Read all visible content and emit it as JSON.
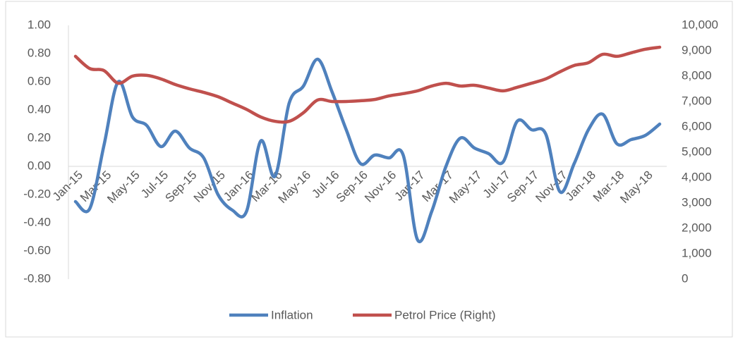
{
  "chart_data": {
    "type": "line",
    "categories": [
      "Jan-15",
      null,
      "Mar-15",
      null,
      "May-15",
      null,
      "Jul-15",
      null,
      "Sep-15",
      null,
      "Nov-15",
      null,
      "Jan-16",
      null,
      "Mar-16",
      null,
      "May-16",
      null,
      "Jul-16",
      null,
      "Sep-16",
      null,
      "Nov-16",
      null,
      "Jan-17",
      null,
      "Mar-17",
      null,
      "May-17",
      null,
      "Jul-17",
      null,
      "Sep-17",
      null,
      "Nov-17",
      null,
      "Jan-18",
      null,
      "Mar-18",
      null,
      "May-18",
      null
    ],
    "series": [
      {
        "name": "Inflation",
        "color": "#4f81bd",
        "values": [
          -0.25,
          -0.3,
          0.15,
          0.6,
          0.35,
          0.29,
          0.14,
          0.25,
          0.13,
          0.06,
          -0.2,
          -0.31,
          -0.32,
          0.18,
          -0.07,
          0.45,
          0.57,
          0.76,
          0.53,
          0.26,
          0.02,
          0.08,
          0.06,
          0.08,
          -0.52,
          -0.32,
          0.0,
          0.2,
          0.13,
          0.09,
          0.03,
          0.32,
          0.26,
          0.23,
          -0.18,
          0.02,
          0.26,
          0.37,
          0.16,
          0.19,
          0.22,
          0.3
        ]
      },
      {
        "name": "Petrol Price (Right)",
        "color": "#c0504d",
        "axis": "y2",
        "values": [
          8780,
          8300,
          8220,
          7720,
          8000,
          8030,
          7890,
          7670,
          7500,
          7360,
          7190,
          6940,
          6690,
          6390,
          6220,
          6220,
          6560,
          7060,
          7000,
          7000,
          7030,
          7080,
          7220,
          7310,
          7420,
          7610,
          7720,
          7610,
          7640,
          7530,
          7420,
          7560,
          7720,
          7890,
          8170,
          8420,
          8530,
          8860,
          8780,
          8920,
          9060,
          9140
        ]
      }
    ],
    "ylim": [
      -0.8,
      1.0
    ],
    "yticks": [
      {
        "value": -0.8,
        "label": "-0.80"
      },
      {
        "value": -0.6,
        "label": "-0.60"
      },
      {
        "value": -0.4,
        "label": "-0.40"
      },
      {
        "value": -0.2,
        "label": "-0.20"
      },
      {
        "value": 0,
        "label": "0.00"
      },
      {
        "value": 0.2,
        "label": "0.20"
      },
      {
        "value": 0.4,
        "label": "0.40"
      },
      {
        "value": 0.6,
        "label": "0.60"
      },
      {
        "value": 0.8,
        "label": "0.80"
      },
      {
        "value": 1.0,
        "label": "1.00"
      }
    ],
    "y2lim": [
      0,
      10000
    ],
    "y2ticks": [
      0,
      {
        "value": 1000,
        "label": "1,000"
      },
      {
        "value": 2000,
        "label": "2,000"
      },
      {
        "value": 3000,
        "label": "3,000"
      },
      {
        "value": 4000,
        "label": "4,000"
      },
      {
        "value": 5000,
        "label": "5,000"
      },
      {
        "value": 6000,
        "label": "6,000"
      },
      {
        "value": 7000,
        "label": "7,000"
      },
      {
        "value": 8000,
        "label": "8,000"
      },
      {
        "value": 9000,
        "label": "9,000"
      },
      {
        "value": 10000,
        "label": "10,000"
      }
    ],
    "grid": false,
    "legend": "bottom"
  }
}
